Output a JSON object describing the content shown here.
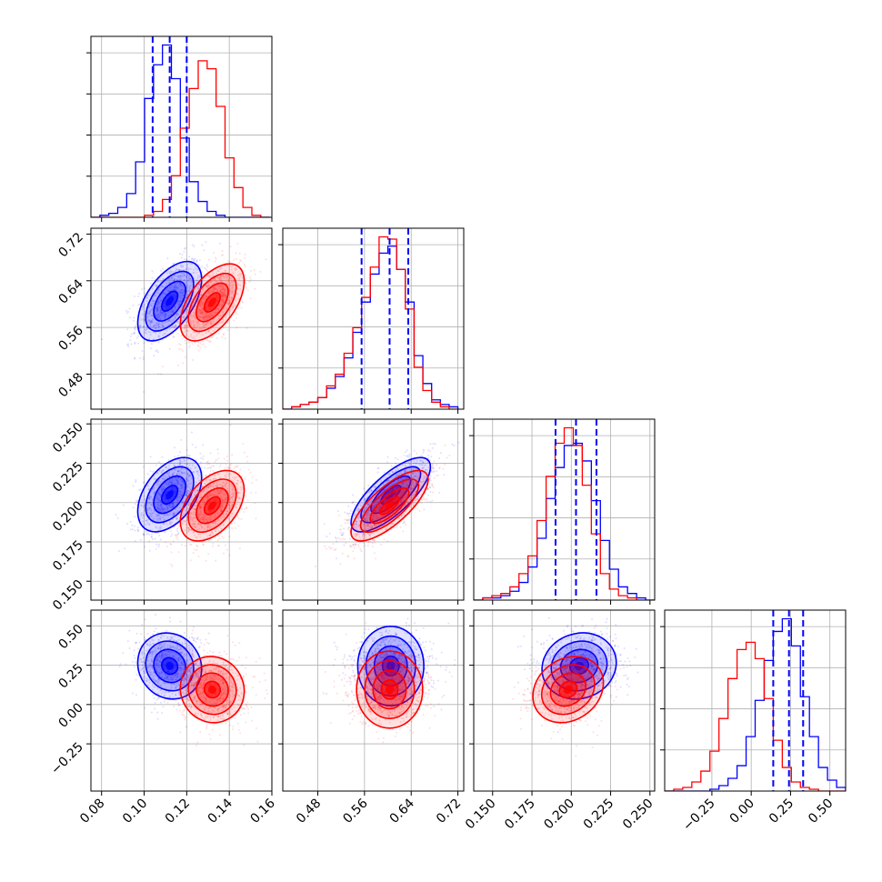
{
  "figure": {
    "type": "corner-plot"
  },
  "colors": {
    "blue": "#0000ff",
    "red": "#ff0000",
    "grid": "#b0b0b0",
    "frame": "#000000"
  },
  "chart_data": {
    "type": "corner",
    "grid": true,
    "parameters": [
      {
        "range": [
          0.075,
          0.16
        ],
        "ticks": [
          0.08,
          0.1,
          0.12,
          0.14,
          0.16
        ],
        "tick_labels": [
          "0.08",
          "0.10",
          "0.12",
          "0.14",
          "0.16"
        ]
      },
      {
        "range": [
          0.42,
          0.73
        ],
        "ticks": [
          0.48,
          0.56,
          0.64,
          0.72
        ],
        "tick_labels": [
          "0.48",
          "0.56",
          "0.64",
          "0.72"
        ]
      },
      {
        "range": [
          0.138,
          0.253
        ],
        "ticks": [
          0.15,
          0.175,
          0.2,
          0.225,
          0.25
        ],
        "tick_labels": [
          "0.150",
          "0.175",
          "0.200",
          "0.225",
          "0.250"
        ]
      },
      {
        "range": [
          -0.55,
          0.6
        ],
        "ticks": [
          -0.25,
          0.0,
          0.25,
          0.5
        ],
        "tick_labels": [
          "−0.25",
          "0.00",
          "0.25",
          "0.50"
        ]
      }
    ],
    "series": [
      {
        "color": "#0000ff",
        "means": [
          0.112,
          0.605,
          0.205,
          0.245
        ],
        "sds": [
          0.0075,
          0.034,
          0.0118,
          0.105
        ],
        "quantiles": [
          [
            0.104,
            0.112,
            0.12
          ],
          [
            0.555,
            0.603,
            0.635
          ],
          [
            0.19,
            0.203,
            0.216
          ],
          [
            0.14,
            0.24,
            0.33
          ]
        ]
      },
      {
        "color": "#ff0000",
        "means": [
          0.132,
          0.603,
          0.198,
          0.095
        ],
        "sds": [
          0.0075,
          0.033,
          0.0112,
          0.105
        ]
      }
    ],
    "histograms": [
      {
        "parameter": 0,
        "bins": [
          0.075,
          0.0792,
          0.0834,
          0.0876,
          0.0918,
          0.096,
          0.1002,
          0.1044,
          0.1086,
          0.1128,
          0.117,
          0.1212,
          0.1254,
          0.1296,
          0.1338,
          0.138,
          0.1422,
          0.1464,
          0.1506,
          0.1548,
          0.159
        ],
        "counts": {
          "blue": [
            0,
            1,
            2,
            5,
            12,
            28,
            60,
            77,
            87,
            70,
            40,
            18,
            8,
            3,
            1,
            0,
            0,
            0,
            0,
            0
          ],
          "red": [
            0,
            0,
            0,
            0,
            0,
            0,
            1,
            3,
            9,
            21,
            45,
            65,
            79,
            75,
            56,
            30,
            15,
            5,
            1,
            0
          ]
        }
      },
      {
        "parameter": 1,
        "bins": [
          0.42,
          0.435,
          0.45,
          0.465,
          0.48,
          0.495,
          0.51,
          0.525,
          0.54,
          0.555,
          0.57,
          0.585,
          0.6,
          0.615,
          0.63,
          0.645,
          0.66,
          0.675,
          0.69,
          0.705,
          0.72
        ],
        "counts": {
          "blue": [
            0,
            1,
            2,
            3,
            5,
            9,
            14,
            22,
            33,
            46,
            58,
            67,
            70,
            60,
            46,
            23,
            11,
            4,
            2,
            1
          ],
          "red": [
            0,
            1,
            2,
            3,
            5,
            10,
            15,
            24,
            35,
            48,
            61,
            74,
            73,
            60,
            43,
            18,
            8,
            3,
            1,
            0
          ]
        }
      },
      {
        "parameter": 2,
        "bins": [
          0.138,
          0.14375,
          0.1495,
          0.15525,
          0.161,
          0.16675,
          0.1725,
          0.17825,
          0.184,
          0.18975,
          0.1955,
          0.20125,
          0.207,
          0.21275,
          0.2185,
          0.22425,
          0.23,
          0.23575,
          0.2415,
          0.24725,
          0.253
        ],
        "counts": {
          "blue": [
            0,
            1,
            1,
            2,
            4,
            8,
            15,
            28,
            46,
            60,
            70,
            71,
            63,
            45,
            27,
            14,
            6,
            3,
            1,
            0
          ],
          "red": [
            0,
            1,
            2,
            3,
            6,
            12,
            20,
            36,
            56,
            71,
            78,
            70,
            52,
            30,
            12,
            5,
            2,
            1,
            0,
            0
          ]
        }
      },
      {
        "parameter": 3,
        "bins": [
          -0.55,
          -0.4925,
          -0.435,
          -0.3775,
          -0.32,
          -0.2625,
          -0.205,
          -0.1475,
          -0.09,
          -0.0325,
          0.025,
          0.0825,
          0.14,
          0.1975,
          0.255,
          0.3125,
          0.37,
          0.4275,
          0.485,
          0.5425,
          0.6
        ],
        "counts": {
          "blue": [
            0,
            0,
            0,
            0,
            0,
            1,
            3,
            7,
            14,
            30,
            50,
            72,
            88,
            95,
            80,
            52,
            30,
            13,
            6,
            2
          ],
          "red": [
            0,
            1,
            2,
            5,
            11,
            22,
            40,
            62,
            78,
            82,
            73,
            51,
            28,
            13,
            5,
            2,
            1,
            0,
            0,
            0
          ]
        }
      }
    ],
    "pairs": [
      {
        "x": 0,
        "y": 1,
        "corr": {
          "blue": 0.55,
          "red": 0.55
        }
      },
      {
        "x": 0,
        "y": 2,
        "corr": {
          "blue": 0.45,
          "red": 0.45
        }
      },
      {
        "x": 1,
        "y": 2,
        "corr": {
          "blue": 0.75,
          "red": 0.75
        }
      },
      {
        "x": 0,
        "y": 3,
        "corr": {
          "blue": -0.1,
          "red": -0.05
        }
      },
      {
        "x": 1,
        "y": 3,
        "corr": {
          "blue": 0.0,
          "red": 0.0
        }
      },
      {
        "x": 2,
        "y": 3,
        "corr": {
          "blue": 0.1,
          "red": 0.2
        }
      }
    ],
    "contour_levels_sigma": [
      0.5,
      1.0,
      1.5,
      2.0
    ]
  }
}
